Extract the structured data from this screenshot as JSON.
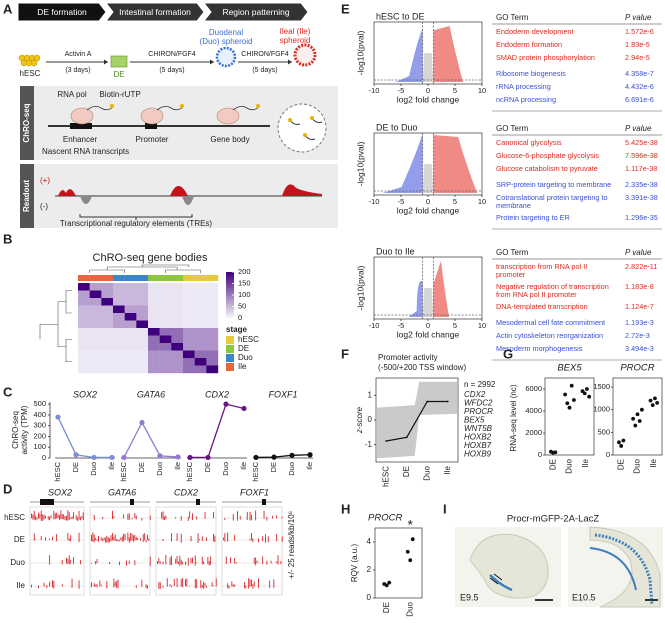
{
  "figure": {
    "A": {
      "letter": "A",
      "steps": [
        "DE formation",
        "Intestinal formation",
        "Region patterning"
      ],
      "hesc": "hESC",
      "de": "DE",
      "duo": [
        "Duodenal",
        "(Duo) spheroid"
      ],
      "ile": [
        "Ileal (Ile)",
        "spheroid"
      ],
      "treatments": [
        [
          "Activin A",
          "(3 days)"
        ],
        [
          "CHIRON/FGF4",
          "(5 days)"
        ],
        [
          "CHIRON/FGF4",
          "(5 days)"
        ]
      ],
      "chroseq": {
        "label": "ChRO-seq",
        "pol": "RNA pol",
        "biotin": "Biotin-rUTP",
        "elements": [
          "Enhancer",
          "Promoter",
          "Gene body"
        ],
        "nascent": "Nascent RNA transcripts"
      },
      "readout": {
        "label": "Readout",
        "plus": "(+)",
        "minus": "(-)",
        "caption": "Transcriptional regulatory elements (TREs)"
      }
    },
    "B": {
      "letter": "B",
      "title": "ChRO-seq gene bodies",
      "legend_title": "stage",
      "stages": [
        {
          "name": "hESC",
          "color": "#e8c93c"
        },
        {
          "name": "DE",
          "color": "#8cc63f"
        },
        {
          "name": "Duo",
          "color": "#3a86c8"
        },
        {
          "name": "Ile",
          "color": "#e8663d"
        }
      ],
      "annotation": [
        3,
        3,
        3,
        2,
        2,
        2,
        1,
        1,
        1,
        0,
        0,
        0
      ],
      "colorbar_lim": [
        0,
        200
      ],
      "colorbar_ticks": [
        0,
        50,
        100,
        150,
        200
      ],
      "matrix": [
        [
          200,
          70,
          70,
          50,
          50,
          50,
          15,
          15,
          15,
          10,
          10,
          10
        ],
        [
          70,
          200,
          70,
          50,
          50,
          50,
          15,
          15,
          15,
          10,
          10,
          10
        ],
        [
          70,
          70,
          200,
          50,
          50,
          50,
          15,
          15,
          15,
          10,
          10,
          10
        ],
        [
          50,
          50,
          50,
          200,
          70,
          70,
          15,
          15,
          15,
          10,
          10,
          10
        ],
        [
          50,
          50,
          50,
          70,
          200,
          70,
          15,
          15,
          15,
          10,
          10,
          10
        ],
        [
          50,
          50,
          50,
          70,
          70,
          200,
          15,
          15,
          15,
          10,
          10,
          10
        ],
        [
          15,
          15,
          15,
          15,
          15,
          15,
          200,
          110,
          110,
          80,
          80,
          80
        ],
        [
          15,
          15,
          15,
          15,
          15,
          15,
          110,
          200,
          110,
          80,
          80,
          80
        ],
        [
          15,
          15,
          15,
          15,
          15,
          15,
          110,
          110,
          200,
          80,
          80,
          80
        ],
        [
          10,
          10,
          10,
          10,
          10,
          10,
          80,
          80,
          80,
          200,
          110,
          110
        ],
        [
          10,
          10,
          10,
          10,
          10,
          10,
          80,
          80,
          80,
          110,
          200,
          110
        ],
        [
          10,
          10,
          10,
          10,
          10,
          10,
          80,
          80,
          80,
          110,
          110,
          200
        ]
      ]
    },
    "C": {
      "letter": "C",
      "ylabel": [
        "ChRO-seq",
        "activity (TPM)"
      ],
      "ylim": [
        0,
        520
      ],
      "yticks": [
        0,
        100,
        200,
        300,
        400,
        500
      ],
      "categories": [
        "hESC",
        "DE",
        "Duo",
        "Ile"
      ],
      "genes": [
        {
          "name": "SOX2",
          "color": "#7b8fd4",
          "values": [
            380,
            30,
            5,
            5
          ]
        },
        {
          "name": "GATA6",
          "color": "#9379d2",
          "values": [
            5,
            330,
            20,
            10
          ]
        },
        {
          "name": "CDX2",
          "color": "#6a1585",
          "values": [
            5,
            5,
            500,
            460
          ]
        },
        {
          "name": "FOXF1",
          "color": "#111111",
          "values": [
            5,
            8,
            25,
            30
          ]
        }
      ]
    },
    "D": {
      "letter": "D",
      "genes": [
        "SOX2",
        "GATA6",
        "CDX2",
        "FOXF1"
      ],
      "rows": [
        "hESC",
        "DE",
        "Duo",
        "Ile"
      ],
      "scale": "+/- 25 reads/kb/10⁶",
      "color": "#d9252a"
    },
    "E": {
      "letter": "E",
      "xlabel": "log2 fold change",
      "ylabel": "-log10(pval)",
      "xlim": [
        -10,
        10
      ],
      "xticks": [
        -10,
        -5,
        0,
        5,
        10
      ],
      "header": [
        "GO Term",
        "P value"
      ],
      "colors": [
        "#3a4fd8",
        "#e2291f"
      ],
      "comparisons": [
        {
          "title": "hESC to DE",
          "terms": [
            {
              "term": [
                "Endoderm development"
              ],
              "p": "1.572e-6",
              "group": 1
            },
            {
              "term": [
                "Endoderm formation"
              ],
              "p": "1.83e-5",
              "group": 1
            },
            {
              "term": [
                "SMAD protein phosphorylation"
              ],
              "p": "2.94e-5",
              "group": 1
            },
            {
              "term": [
                "Ribosome biogenesis"
              ],
              "p": "4.358e-7",
              "group": 0
            },
            {
              "term": [
                "rRNA processing"
              ],
              "p": "4.432e-6",
              "group": 0
            },
            {
              "term": [
                "ncRNA processing"
              ],
              "p": "6.691e-6",
              "group": 0
            }
          ]
        },
        {
          "title": "DE to Duo",
          "terms": [
            {
              "term": [
                "Canonical glycolysis"
              ],
              "p": "5.425e-38",
              "group": 1
            },
            {
              "term": [
                "Glucose-6-phosphate glycolysis"
              ],
              "p": "7.596e-38",
              "group": 1
            },
            {
              "term": [
                "Glucose catabolism to pyruvate"
              ],
              "p": "1.117e-38",
              "group": 1
            },
            {
              "term": [
                "SRP-protein targeting to membrane"
              ],
              "p": "2.335e-38",
              "group": 0
            },
            {
              "term": [
                "Cotranslational protein targeting to",
                "membrane"
              ],
              "p": "3.391e-38",
              "group": 0
            },
            {
              "term": [
                "Protein targeting to ER"
              ],
              "p": "1.296e-35",
              "group": 0
            }
          ]
        },
        {
          "title": "Duo to Ile",
          "terms": [
            {
              "term": [
                "transcription from RNA pol II",
                "promoter"
              ],
              "p": "2.822e-11",
              "group": 1
            },
            {
              "term": [
                "Negative regulation of transcription",
                "from RNA pol II promoter"
              ],
              "p": "1.183e-8",
              "group": 1
            },
            {
              "term": [
                "DNA-templated transcription"
              ],
              "p": "1.124e-7",
              "group": 1
            },
            {
              "term": [
                "Mesodermal cell fate commitment"
              ],
              "p": "1.193e-3",
              "group": 0
            },
            {
              "term": [
                "Actin cytoskeleton reorganization"
              ],
              "p": "2.72e-3",
              "group": 0
            },
            {
              "term": [
                "Mesoderm morphogenesis"
              ],
              "p": "3.494e-3",
              "group": 0
            }
          ]
        }
      ]
    },
    "F": {
      "letter": "F",
      "title": [
        "Promoter activity",
        "(-500/+200 TSS window)"
      ],
      "ylabel": "z-score",
      "ylim": [
        -1.7,
        1.7
      ],
      "yticks": [
        -1,
        0,
        1
      ],
      "categories": [
        "hESC",
        "DE",
        "Duo",
        "Ile"
      ],
      "values": [
        -0.85,
        -0.7,
        0.75,
        0.75
      ],
      "n": "n = 2992",
      "genes": [
        "CDX2",
        "WFDC2",
        "PROCR",
        "BEX5",
        "WNT5B",
        "HOXB2",
        "HOXB7",
        "HOXB9"
      ]
    },
    "G": {
      "letter": "G",
      "ylabel": "RNA-seq level (nc)",
      "categories": [
        "DE",
        "Duo",
        "Ile"
      ],
      "plots": [
        {
          "gene": "BEX5",
          "ylim": [
            0,
            7000
          ],
          "yticks": [
            0,
            2000,
            4000,
            6000
          ],
          "values": [
            [
              300,
              200,
              250
            ],
            [
              5500,
              4700,
              4300,
              6300,
              5000
            ],
            [
              5800,
              5600,
              6000,
              5300
            ]
          ]
        },
        {
          "gene": "PROCR",
          "ylim": [
            0,
            1700
          ],
          "yticks": [
            0,
            500,
            1000,
            1500
          ],
          "values": [
            [
              280,
              200,
              320
            ],
            [
              800,
              650,
              900,
              750,
              1000
            ],
            [
              1200,
              1100,
              1250,
              1150
            ]
          ]
        }
      ]
    },
    "H": {
      "letter": "H",
      "gene": "PROCR",
      "ylabel": "RQV (a.u.)",
      "ylim": [
        0,
        5
      ],
      "yticks": [
        0,
        2,
        4
      ],
      "categories": [
        "DE",
        "Duo"
      ],
      "values": [
        [
          1.0,
          0.9,
          1.1
        ],
        [
          3.3,
          2.7,
          4.2
        ]
      ],
      "significance": "*"
    },
    "I": {
      "letter": "I",
      "title": "Procr-mGFP-2A-LacZ",
      "stages": [
        "E9.5",
        "E10.5"
      ]
    }
  }
}
